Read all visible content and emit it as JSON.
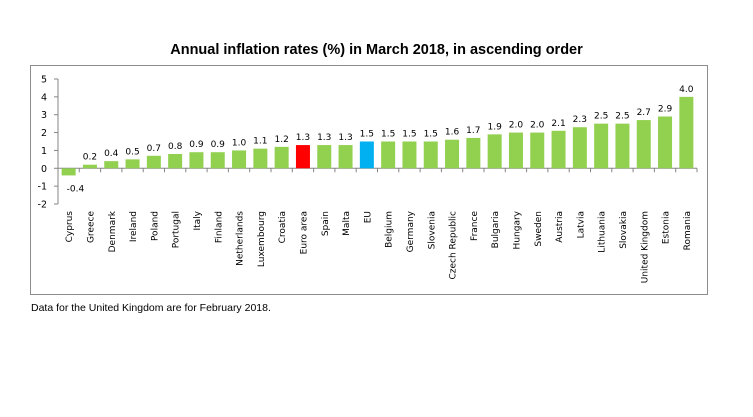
{
  "chart_data": {
    "type": "bar",
    "title": "Annual inflation rates (%) in March 2018, in ascending order",
    "xlabel": "",
    "ylabel": "",
    "ylim": [
      -2,
      5
    ],
    "yticks": [
      5,
      4,
      3,
      2,
      1,
      0,
      -1,
      -2
    ],
    "grid": false,
    "legend": null,
    "categories": [
      "Cyprus",
      "Greece",
      "Denmark",
      "Ireland",
      "Poland",
      "Portugal",
      "Italy",
      "Finland",
      "Netherlands",
      "Luxembourg",
      "Croatia",
      "Euro area",
      "Spain",
      "Malta",
      "EU",
      "Belgium",
      "Germany",
      "Slovenia",
      "Czech Republic",
      "France",
      "Bulgaria",
      "Hungary",
      "Sweden",
      "Austria",
      "Latvia",
      "Lithuania",
      "Slovakia",
      "United Kingdom",
      "Estonia",
      "Romania"
    ],
    "values": [
      -0.4,
      0.2,
      0.4,
      0.5,
      0.7,
      0.8,
      0.9,
      0.9,
      1.0,
      1.1,
      1.2,
      1.3,
      1.3,
      1.3,
      1.5,
      1.5,
      1.5,
      1.5,
      1.6,
      1.7,
      1.9,
      2.0,
      2.0,
      2.1,
      2.3,
      2.5,
      2.5,
      2.7,
      2.9,
      4.0
    ],
    "value_labels": [
      "-0.4",
      "0.2",
      "0.4",
      "0.5",
      "0.7",
      "0.8",
      "0.9",
      "0.9",
      "1.0",
      "1.1",
      "1.2",
      "1.3",
      "1.3",
      "1.3",
      "1.5",
      "1.5",
      "1.5",
      "1.5",
      "1.6",
      "1.7",
      "1.9",
      "2.0",
      "2.0",
      "2.1",
      "2.3",
      "2.5",
      "2.5",
      "2.7",
      "2.9",
      "4.0"
    ],
    "colors": {
      "default": "#92D050",
      "highlight": {
        "Euro area": "#FF0000",
        "EU": "#00B0F0"
      }
    }
  },
  "footnote": "Data for the United Kingdom are for February 2018."
}
